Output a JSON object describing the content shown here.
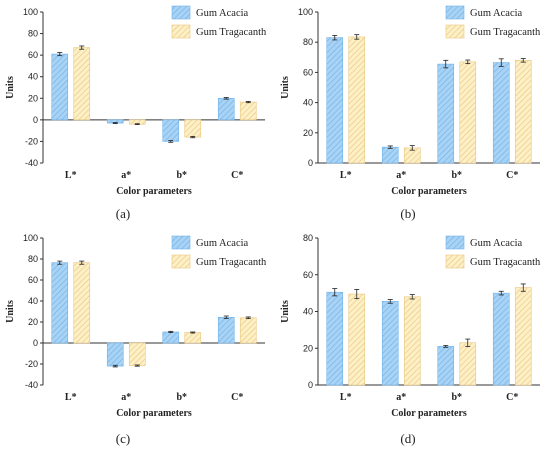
{
  "colors": {
    "series_1_fill": "#a9d3f5",
    "series_1_hatch": "#6fb2e8",
    "series_2_fill": "#fdf0c6",
    "series_2_hatch": "#e9c77f"
  },
  "chart_data": [
    {
      "type": "bar",
      "panel_label": "(a)",
      "categories": [
        "L*",
        "a*",
        "b*",
        "C*"
      ],
      "series": [
        {
          "name": "Gum Acacia",
          "values": [
            61,
            -3,
            -20,
            20
          ],
          "errors": [
            1.5,
            0.5,
            0.8,
            0.8
          ]
        },
        {
          "name": "Gum Tragacanth",
          "values": [
            67,
            -4,
            -16,
            16.5
          ],
          "errors": [
            1.5,
            0.4,
            0.6,
            0.6
          ]
        }
      ],
      "xlabel": "Color parameters",
      "ylabel": "Units",
      "ylim": [
        -40,
        100
      ],
      "yticks": [
        -40,
        -20,
        0,
        20,
        40,
        60,
        80,
        100
      ],
      "grid": false,
      "legend_position": "top-right"
    },
    {
      "type": "bar",
      "panel_label": "(b)",
      "categories": [
        "L*",
        "a*",
        "b*",
        "C*"
      ],
      "series": [
        {
          "name": "Gum Acacia",
          "values": [
            83,
            10.5,
            65.5,
            66.5
          ],
          "errors": [
            1.5,
            0.8,
            2.5,
            2.5
          ]
        },
        {
          "name": "Gum Tragacanth",
          "values": [
            83.5,
            10,
            67,
            68
          ],
          "errors": [
            1.5,
            1.5,
            1.2,
            1.2
          ]
        }
      ],
      "xlabel": "Color parameters",
      "ylabel": "Units",
      "ylim": [
        0,
        100
      ],
      "yticks": [
        0,
        20,
        40,
        60,
        80,
        100
      ],
      "grid": false,
      "legend_position": "top-right"
    },
    {
      "type": "bar",
      "panel_label": "(c)",
      "categories": [
        "L*",
        "a*",
        "b*",
        "C*"
      ],
      "series": [
        {
          "name": "Gum Acacia",
          "values": [
            76.5,
            -22,
            10.5,
            24.5
          ],
          "errors": [
            1.5,
            0.8,
            0.6,
            1.2
          ]
        },
        {
          "name": "Gum Tragacanth",
          "values": [
            76.5,
            -21.5,
            10,
            24
          ],
          "errors": [
            1.5,
            0.6,
            0.5,
            0.8
          ]
        }
      ],
      "xlabel": "Color parameters",
      "ylabel": "Units",
      "ylim": [
        -40,
        100
      ],
      "yticks": [
        -40,
        -20,
        0,
        20,
        40,
        60,
        80,
        100
      ],
      "grid": false,
      "legend_position": "top-right"
    },
    {
      "type": "bar",
      "panel_label": "(d)",
      "categories": [
        "L*",
        "a*",
        "b*",
        "C*"
      ],
      "series": [
        {
          "name": "Gum Acacia",
          "values": [
            50.5,
            45.5,
            21,
            50
          ],
          "errors": [
            2,
            1,
            0.5,
            1
          ]
        },
        {
          "name": "Gum Tragacanth",
          "values": [
            49.5,
            48,
            23,
            53
          ],
          "errors": [
            2.5,
            1.2,
            2,
            2
          ]
        }
      ],
      "xlabel": "Color parameters",
      "ylabel": "Units",
      "ylim": [
        0,
        80
      ],
      "yticks": [
        0,
        20,
        40,
        60,
        80
      ],
      "grid": false,
      "legend_position": "top-right"
    }
  ]
}
